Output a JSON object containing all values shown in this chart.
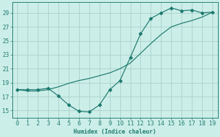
{
  "xlabel": "Humidex (Indice chaleur)",
  "x_ticks": [
    0,
    1,
    2,
    3,
    4,
    5,
    6,
    7,
    8,
    9,
    10,
    11,
    12,
    13,
    14,
    15,
    16,
    17,
    18,
    19
  ],
  "y_ticks": [
    15,
    17,
    19,
    21,
    23,
    25,
    27,
    29
  ],
  "xlim": [
    -0.5,
    19.5
  ],
  "ylim": [
    14.0,
    30.5
  ],
  "bg_color": "#cceee8",
  "line_color": "#1e7a70",
  "grid_color": "#aad4cc",
  "dip_x": [
    0,
    1,
    2,
    3,
    4,
    5,
    6,
    7,
    8,
    9,
    10,
    11,
    12,
    13,
    14,
    15,
    16,
    17,
    18,
    19
  ],
  "dip_y": [
    18.0,
    18.0,
    18.0,
    18.2,
    17.1,
    15.8,
    14.9,
    14.8,
    15.8,
    18.0,
    19.3,
    22.6,
    26.0,
    28.2,
    29.0,
    29.7,
    29.3,
    29.4,
    29.0,
    29.1
  ],
  "smooth_x": [
    0,
    1,
    2,
    3,
    4,
    5,
    6,
    7,
    8,
    9,
    10,
    11,
    12,
    13,
    14,
    15,
    16,
    17,
    18,
    19
  ],
  "smooth_y": [
    18.0,
    17.8,
    17.8,
    18.0,
    18.4,
    18.9,
    19.3,
    19.6,
    20.0,
    20.4,
    21.0,
    21.8,
    23.2,
    24.6,
    25.9,
    27.0,
    27.5,
    27.9,
    28.4,
    29.1
  ],
  "xlabel_fontsize": 6,
  "tick_fontsize": 6,
  "figwidth": 3.2,
  "figheight": 2.0,
  "dpi": 100
}
